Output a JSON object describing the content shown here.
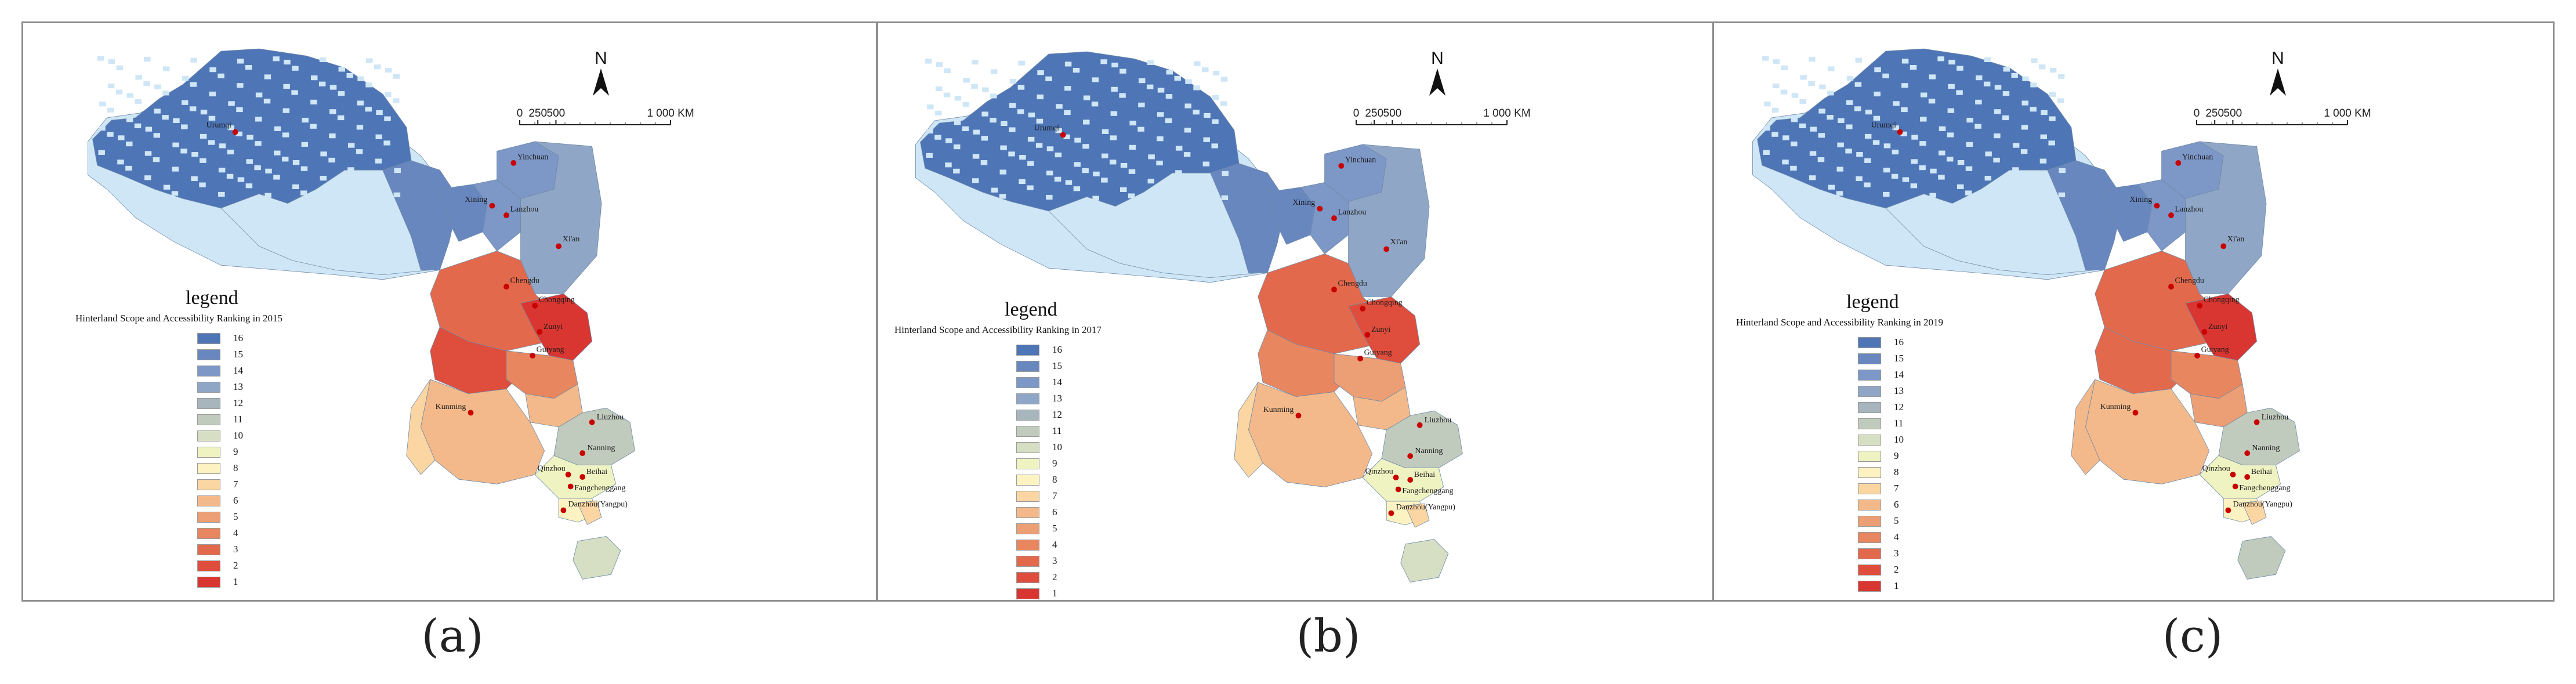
{
  "colors": {
    "rank_16": "#4e75b6",
    "rank_15": "#6887bf",
    "rank_14": "#7d97c7",
    "rank_13": "#8fa6c6",
    "rank_12": "#a7b6bd",
    "rank_11": "#c1cbbd",
    "rank_10": "#d6dfc3",
    "rank_9": "#eff3c2",
    "rank_8": "#fdf2c2",
    "rank_7": "#fbd6a2",
    "rank_6": "#f4b98a",
    "rank_5": "#ec9f74",
    "rank_4": "#e8865f",
    "rank_3": "#e3694c",
    "rank_2": "#df4d3c",
    "rank_1": "#d93631",
    "pale_blue_area": "#cfe6f6",
    "city_dot": "#c80000",
    "panel_border": "#8c8c8c"
  },
  "legend": {
    "title": "legend",
    "ranks": [
      "16",
      "15",
      "14",
      "13",
      "12",
      "11",
      "10",
      "9",
      "8",
      "7",
      "6",
      "5",
      "4",
      "3",
      "2",
      "1"
    ]
  },
  "scale": {
    "ticks": [
      "0",
      "250",
      "500",
      "1 000 KM"
    ],
    "north": "N"
  },
  "cities": [
    "Urumqi",
    "Yinchuan",
    "Xining",
    "Lanzhou",
    "Xi'an",
    "Chengdu",
    "Chongqing",
    "Zunyi",
    "Guiyang",
    "Kunming",
    "Liuzhou",
    "Nanning",
    "Qinzhou",
    "Beihai",
    "Fangchenggang",
    "Danzhou(Yangpu)"
  ],
  "panels": [
    {
      "caption": "(a)",
      "legend_subtitle": "Hinterland Scope and Accessibility Ranking in 2015",
      "region_ranks": {
        "northwest": "16",
        "northwest_pale": "pale",
        "north_band": "15",
        "xining": "15",
        "lanzhou": "14",
        "ningxia": "14",
        "shaanxi": "13",
        "west_pale": "pale",
        "sichuan_north": "3",
        "chongqing": "1",
        "sichuan_south": "2",
        "zunyi": "4",
        "guiyang": "6",
        "yunnan": "6",
        "yunnan_west": "7",
        "guangxi_north": "11",
        "guangxi_south": "9",
        "qinzhou": "8",
        "beihai": "7",
        "hainan": "10"
      }
    },
    {
      "caption": "(b)",
      "legend_subtitle": "Hinterland Scope and Accessibility Ranking in 2017",
      "region_ranks": {
        "northwest": "16",
        "northwest_pale": "pale",
        "north_band": "15",
        "xining": "15",
        "lanzhou": "14",
        "ningxia": "14",
        "shaanxi": "13",
        "west_pale": "pale",
        "sichuan_north": "3",
        "chongqing": "2",
        "sichuan_south": "4",
        "zunyi": "5",
        "guiyang": "6",
        "yunnan": "6",
        "yunnan_west": "7",
        "guangxi_north": "11",
        "guangxi_south": "9",
        "qinzhou": "8",
        "beihai": "7",
        "hainan": "10"
      }
    },
    {
      "caption": "(c)",
      "legend_subtitle": "Hinterland Scope and Accessibility Ranking in 2019",
      "region_ranks": {
        "northwest": "16",
        "northwest_pale": "pale",
        "north_band": "15",
        "xining": "15",
        "lanzhou": "14",
        "ningxia": "14",
        "shaanxi": "13",
        "west_pale": "pale",
        "sichuan_north": "3",
        "chongqing": "1",
        "sichuan_south": "3",
        "zunyi": "4",
        "guiyang": "5",
        "yunnan": "6",
        "yunnan_west": "6",
        "guangxi_north": "11",
        "guangxi_south": "9",
        "qinzhou": "8",
        "beihai": "7",
        "hainan": "11"
      }
    }
  ]
}
